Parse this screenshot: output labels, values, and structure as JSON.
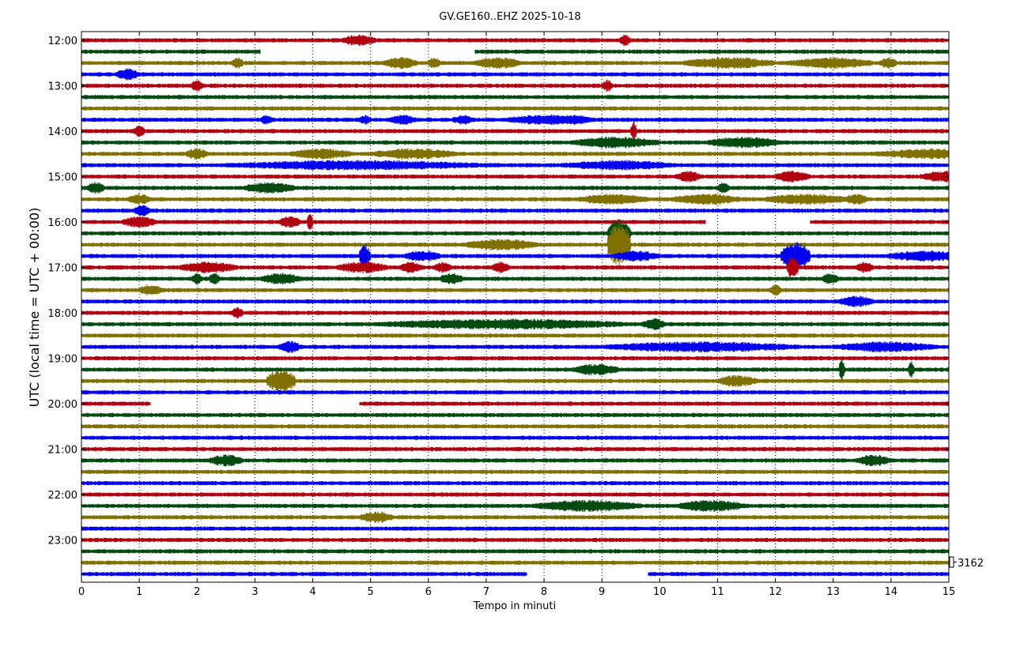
{
  "chart_data": {
    "type": "line",
    "title": "GV.GE160..EHZ 2025-10-18",
    "xlabel": "Tempo in minuti",
    "ylabel": "UTC (local time = UTC + 00:00)",
    "xlim": [
      0,
      15
    ],
    "x_ticks": [
      "0",
      "1",
      "2",
      "3",
      "4",
      "5",
      "6",
      "7",
      "8",
      "9",
      "10",
      "11",
      "12",
      "13",
      "14",
      "15"
    ],
    "y_ticks": [
      "12:00",
      "13:00",
      "14:00",
      "15:00",
      "16:00",
      "17:00",
      "18:00",
      "19:00",
      "20:00",
      "21:00",
      "22:00",
      "23:00"
    ],
    "grid": "vertical dotted",
    "scale_label": "3162",
    "trace_colors": [
      "#b00010",
      "#004a10",
      "#807000",
      "#0000ee"
    ],
    "traces_per_hour": 4,
    "trace_minutes": 15,
    "series": [
      {
        "start": "12:00",
        "gaps": [],
        "bursts": [
          [
            4.5,
            0.6,
            2
          ],
          [
            9.3,
            0.2,
            2
          ]
        ]
      },
      {
        "start": "12:15",
        "gaps": [
          [
            3.1,
            6.8
          ]
        ],
        "bursts": []
      },
      {
        "start": "12:30",
        "gaps": [],
        "bursts": [
          [
            2.6,
            0.2,
            2
          ],
          [
            5.2,
            0.6,
            2
          ],
          [
            6.0,
            0.2,
            2
          ],
          [
            6.8,
            0.8,
            2
          ],
          [
            10.4,
            1.6,
            2
          ],
          [
            12.2,
            1.5,
            2
          ],
          [
            13.8,
            0.3,
            2
          ]
        ]
      },
      {
        "start": "12:45",
        "gaps": [],
        "bursts": [
          [
            0.6,
            0.4,
            2
          ]
        ]
      },
      {
        "start": "13:00",
        "gaps": [],
        "bursts": [
          [
            1.9,
            0.2,
            2
          ],
          [
            9.0,
            0.2,
            2
          ]
        ]
      },
      {
        "start": "13:15",
        "gaps": [],
        "bursts": []
      },
      {
        "start": "13:30",
        "gaps": [],
        "bursts": []
      },
      {
        "start": "13:45",
        "gaps": [],
        "bursts": [
          [
            3.1,
            0.2,
            1.6
          ],
          [
            4.8,
            0.2,
            1.6
          ],
          [
            5.3,
            0.5,
            1.6
          ],
          [
            6.4,
            0.4,
            1.6
          ],
          [
            7.3,
            1.6,
            1.6
          ],
          [
            8.3,
            0.5,
            1.6
          ]
        ]
      },
      {
        "start": "14:00",
        "gaps": [],
        "bursts": [
          [
            0.9,
            0.2,
            2
          ],
          [
            9.5,
            0.1,
            4
          ]
        ]
      },
      {
        "start": "14:15",
        "gaps": [],
        "bursts": [
          [
            8.5,
            1.5,
            2
          ],
          [
            10.8,
            1.3,
            2
          ]
        ]
      },
      {
        "start": "14:30",
        "gaps": [],
        "bursts": [
          [
            1.8,
            0.4,
            2
          ],
          [
            3.6,
            1.1,
            1.8
          ],
          [
            5.0,
            1.5,
            1.8
          ],
          [
            13.7,
            2.6,
            1.8
          ]
        ]
      },
      {
        "start": "14:45",
        "gaps": [],
        "bursts": [
          [
            2.5,
            4.5,
            1.6
          ],
          [
            8.3,
            2.0,
            1.6
          ]
        ]
      },
      {
        "start": "15:00",
        "gaps": [],
        "bursts": [
          [
            10.3,
            0.4,
            2
          ],
          [
            12.0,
            0.6,
            2
          ],
          [
            14.5,
            0.9,
            2
          ]
        ]
      },
      {
        "start": "15:15",
        "gaps": [],
        "bursts": [
          [
            0.1,
            0.3,
            2
          ],
          [
            2.8,
            0.9,
            2
          ],
          [
            11.0,
            0.2,
            2
          ]
        ]
      },
      {
        "start": "15:30",
        "gaps": [],
        "bursts": [
          [
            0.8,
            0.4,
            1.8
          ],
          [
            8.6,
            1.2,
            1.8
          ],
          [
            10.2,
            1.2,
            1.8
          ],
          [
            11.8,
            1.5,
            1.8
          ],
          [
            13.2,
            0.4,
            1.8
          ]
        ]
      },
      {
        "start": "15:45",
        "gaps": [],
        "bursts": [
          [
            0.9,
            0.3,
            2
          ]
        ]
      },
      {
        "start": "16:00",
        "gaps": [
          [
            10.8,
            12.6
          ]
        ],
        "bursts": [
          [
            0.7,
            0.6,
            2
          ],
          [
            3.4,
            0.4,
            2
          ],
          [
            3.9,
            0.1,
            4
          ]
        ]
      },
      {
        "start": "16:15",
        "gaps": [],
        "bursts": [
          [
            9.1,
            0.4,
            6
          ]
        ]
      },
      {
        "start": "16:30",
        "gaps": [],
        "bursts": [
          [
            6.6,
            1.3,
            2
          ],
          [
            9.1,
            0.4,
            10
          ]
        ]
      },
      {
        "start": "16:45",
        "gaps": [],
        "bursts": [
          [
            4.8,
            0.2,
            5
          ],
          [
            5.6,
            0.6,
            2
          ],
          [
            9.2,
            0.8,
            1.8
          ],
          [
            12.1,
            0.5,
            6
          ],
          [
            13.9,
            1.4,
            1.8
          ]
        ]
      },
      {
        "start": "17:00",
        "gaps": [],
        "bursts": [
          [
            1.7,
            1.0,
            2
          ],
          [
            4.4,
            0.9,
            2
          ],
          [
            5.5,
            0.4,
            2
          ],
          [
            6.1,
            0.3,
            2
          ],
          [
            7.1,
            0.3,
            2
          ],
          [
            12.2,
            0.2,
            5
          ],
          [
            13.4,
            0.3,
            2
          ]
        ]
      },
      {
        "start": "17:15",
        "gaps": [],
        "bursts": [
          [
            1.9,
            0.2,
            2
          ],
          [
            2.2,
            0.2,
            2
          ],
          [
            3.1,
            0.7,
            2
          ],
          [
            6.2,
            0.4,
            2
          ],
          [
            12.8,
            0.3,
            2
          ]
        ]
      },
      {
        "start": "17:30",
        "gaps": [],
        "bursts": [
          [
            1.0,
            0.4,
            2
          ],
          [
            11.9,
            0.2,
            2
          ]
        ]
      },
      {
        "start": "17:45",
        "gaps": [],
        "bursts": [
          [
            13.1,
            0.6,
            2
          ]
        ]
      },
      {
        "start": "18:00",
        "gaps": [],
        "bursts": [
          [
            2.6,
            0.2,
            2
          ]
        ]
      },
      {
        "start": "18:15",
        "gaps": [],
        "bursts": [
          [
            5.1,
            4.4,
            1.8
          ],
          [
            9.7,
            0.4,
            2
          ]
        ]
      },
      {
        "start": "18:30",
        "gaps": [],
        "bursts": []
      },
      {
        "start": "18:45",
        "gaps": [],
        "bursts": [
          [
            3.4,
            0.4,
            2
          ],
          [
            9.0,
            3.4,
            1.8
          ],
          [
            13.0,
            1.8,
            1.8
          ]
        ]
      },
      {
        "start": "19:00",
        "gaps": [],
        "bursts": []
      },
      {
        "start": "19:15",
        "gaps": [],
        "bursts": [
          [
            8.5,
            0.8,
            2
          ],
          [
            13.1,
            0.1,
            4
          ],
          [
            14.3,
            0.1,
            4
          ]
        ]
      },
      {
        "start": "19:30",
        "gaps": [],
        "bursts": [
          [
            3.2,
            0.5,
            5
          ],
          [
            11.0,
            0.7,
            2
          ]
        ]
      },
      {
        "start": "19:45",
        "gaps": [],
        "bursts": []
      },
      {
        "start": "20:00",
        "gaps": [
          [
            1.2,
            4.8
          ]
        ],
        "bursts": []
      },
      {
        "start": "20:15",
        "gaps": [],
        "bursts": []
      },
      {
        "start": "20:30",
        "gaps": [],
        "bursts": []
      },
      {
        "start": "20:45",
        "gaps": [],
        "bursts": []
      },
      {
        "start": "21:00",
        "gaps": [],
        "bursts": []
      },
      {
        "start": "21:15",
        "gaps": [],
        "bursts": [
          [
            2.2,
            0.6,
            2
          ],
          [
            13.4,
            0.6,
            2
          ]
        ]
      },
      {
        "start": "21:30",
        "gaps": [],
        "bursts": []
      },
      {
        "start": "21:45",
        "gaps": [],
        "bursts": []
      },
      {
        "start": "22:00",
        "gaps": [],
        "bursts": []
      },
      {
        "start": "22:15",
        "gaps": [],
        "bursts": [
          [
            7.8,
            1.9,
            2
          ],
          [
            10.3,
            1.2,
            2
          ]
        ]
      },
      {
        "start": "22:30",
        "gaps": [],
        "bursts": [
          [
            4.8,
            0.6,
            2
          ]
        ]
      },
      {
        "start": "22:45",
        "gaps": [],
        "bursts": []
      },
      {
        "start": "23:00",
        "gaps": [],
        "bursts": []
      },
      {
        "start": "23:15",
        "gaps": [],
        "bursts": []
      },
      {
        "start": "23:30",
        "gaps": [],
        "bursts": []
      },
      {
        "start": "23:45",
        "gaps": [
          [
            7.7,
            9.8
          ]
        ],
        "bursts": []
      }
    ]
  }
}
